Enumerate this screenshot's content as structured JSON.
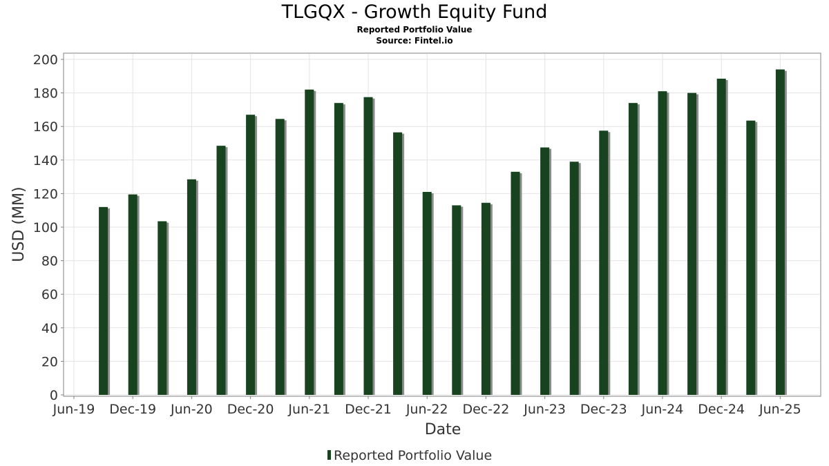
{
  "chart_data": {
    "type": "bar",
    "title": "TLGQX - Growth Equity Fund",
    "subtitle": "Reported Portfolio Value",
    "source": "Source: Fintel.io",
    "xlabel": "Date",
    "ylabel": "USD (MM)",
    "ylim": [
      0,
      200
    ],
    "yticks": [
      0,
      20,
      40,
      60,
      80,
      100,
      120,
      140,
      160,
      180,
      200
    ],
    "xlim": [
      "2019-06",
      "2025-09"
    ],
    "xticks": [
      "Jun-19",
      "Dec-19",
      "Jun-20",
      "Dec-20",
      "Jun-21",
      "Dec-21",
      "Jun-22",
      "Dec-22",
      "Jun-23",
      "Dec-23",
      "Jun-24",
      "Dec-24",
      "Jun-25"
    ],
    "grid": true,
    "legend_position": "bottom-center",
    "series": [
      {
        "name": "Reported Portfolio Value",
        "color": "#17431f",
        "points": [
          {
            "x": "2019-09",
            "y": 112
          },
          {
            "x": "2019-12",
            "y": 119.5
          },
          {
            "x": "2020-03",
            "y": 103.5
          },
          {
            "x": "2020-06",
            "y": 128.5
          },
          {
            "x": "2020-09",
            "y": 148.5
          },
          {
            "x": "2020-12",
            "y": 167
          },
          {
            "x": "2021-03",
            "y": 164.5
          },
          {
            "x": "2021-06",
            "y": 182
          },
          {
            "x": "2021-09",
            "y": 174
          },
          {
            "x": "2021-12",
            "y": 177.5
          },
          {
            "x": "2022-03",
            "y": 156.5
          },
          {
            "x": "2022-06",
            "y": 121
          },
          {
            "x": "2022-09",
            "y": 113
          },
          {
            "x": "2022-12",
            "y": 114.5
          },
          {
            "x": "2023-03",
            "y": 133
          },
          {
            "x": "2023-06",
            "y": 147.5
          },
          {
            "x": "2023-09",
            "y": 139
          },
          {
            "x": "2023-12",
            "y": 157.5
          },
          {
            "x": "2024-03",
            "y": 174
          },
          {
            "x": "2024-06",
            "y": 181
          },
          {
            "x": "2024-09",
            "y": 180
          },
          {
            "x": "2024-12",
            "y": 188.5
          },
          {
            "x": "2025-03",
            "y": 163.5
          },
          {
            "x": "2025-06",
            "y": 194
          }
        ]
      }
    ]
  }
}
